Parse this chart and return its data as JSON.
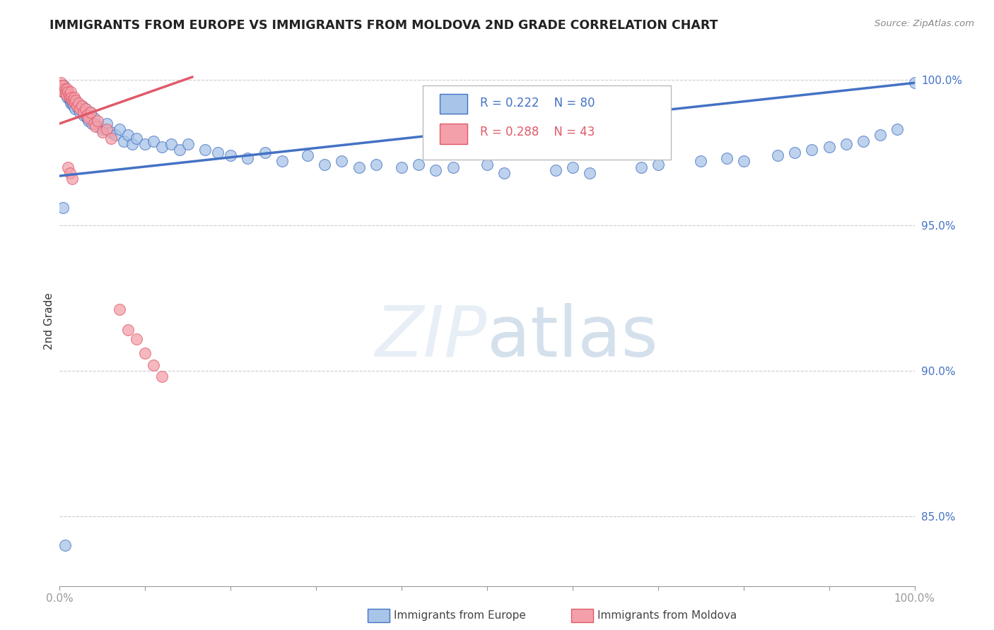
{
  "title": "IMMIGRANTS FROM EUROPE VS IMMIGRANTS FROM MOLDOVA 2ND GRADE CORRELATION CHART",
  "source": "Source: ZipAtlas.com",
  "ylabel": "2nd Grade",
  "xlim": [
    0.0,
    1.0
  ],
  "ylim": [
    0.826,
    1.008
  ],
  "yticks": [
    0.85,
    0.9,
    0.95,
    1.0
  ],
  "ytick_labels": [
    "85.0%",
    "90.0%",
    "95.0%",
    "100.0%"
  ],
  "legend_label_blue": "Immigrants from Europe",
  "legend_label_pink": "Immigrants from Moldova",
  "R_blue": 0.222,
  "N_blue": 80,
  "R_pink": 0.288,
  "N_pink": 43,
  "trendline_blue_color": "#4472c4",
  "trendline_pink_color": "#e05a6a",
  "scatter_blue_color": "#a8c4e8",
  "scatter_pink_color": "#f4a0aa",
  "background_color": "#ffffff",
  "grid_color": "#cccccc",
  "blue_trend_x": [
    0.0,
    1.0
  ],
  "blue_trend_y": [
    0.967,
    0.999
  ],
  "pink_trend_x": [
    0.0,
    0.155
  ],
  "pink_trend_y": [
    0.985,
    1.001
  ],
  "blue_x": [
    0.003,
    0.004,
    0.005,
    0.006,
    0.007,
    0.008,
    0.009,
    0.01,
    0.011,
    0.012,
    0.013,
    0.014,
    0.015,
    0.016,
    0.017,
    0.018,
    0.019,
    0.02,
    0.022,
    0.024,
    0.026,
    0.028,
    0.03,
    0.032,
    0.034,
    0.036,
    0.038,
    0.04,
    0.045,
    0.05,
    0.055,
    0.06,
    0.065,
    0.07,
    0.075,
    0.08,
    0.085,
    0.09,
    0.1,
    0.11,
    0.12,
    0.13,
    0.14,
    0.15,
    0.17,
    0.185,
    0.2,
    0.22,
    0.24,
    0.26,
    0.29,
    0.31,
    0.33,
    0.35,
    0.37,
    0.4,
    0.42,
    0.44,
    0.46,
    0.5,
    0.52,
    0.58,
    0.6,
    0.62,
    0.68,
    0.7,
    0.75,
    0.78,
    0.8,
    0.84,
    0.86,
    0.88,
    0.9,
    0.92,
    0.94,
    0.96,
    0.98,
    1.0,
    0.004,
    0.006
  ],
  "blue_y": [
    0.997,
    0.996,
    0.998,
    0.997,
    0.996,
    0.995,
    0.994,
    0.996,
    0.994,
    0.993,
    0.992,
    0.993,
    0.992,
    0.991,
    0.993,
    0.99,
    0.992,
    0.991,
    0.99,
    0.989,
    0.991,
    0.988,
    0.99,
    0.987,
    0.986,
    0.989,
    0.985,
    0.987,
    0.984,
    0.983,
    0.985,
    0.982,
    0.981,
    0.983,
    0.979,
    0.981,
    0.978,
    0.98,
    0.978,
    0.979,
    0.977,
    0.978,
    0.976,
    0.978,
    0.976,
    0.975,
    0.974,
    0.973,
    0.975,
    0.972,
    0.974,
    0.971,
    0.972,
    0.97,
    0.971,
    0.97,
    0.971,
    0.969,
    0.97,
    0.971,
    0.968,
    0.969,
    0.97,
    0.968,
    0.97,
    0.971,
    0.972,
    0.973,
    0.972,
    0.974,
    0.975,
    0.976,
    0.977,
    0.978,
    0.979,
    0.981,
    0.983,
    0.999,
    0.956,
    0.84
  ],
  "pink_x": [
    0.001,
    0.002,
    0.003,
    0.004,
    0.005,
    0.006,
    0.007,
    0.008,
    0.009,
    0.01,
    0.011,
    0.012,
    0.013,
    0.014,
    0.015,
    0.016,
    0.017,
    0.018,
    0.019,
    0.02,
    0.022,
    0.024,
    0.026,
    0.028,
    0.03,
    0.032,
    0.034,
    0.036,
    0.04,
    0.042,
    0.044,
    0.05,
    0.055,
    0.06,
    0.07,
    0.08,
    0.09,
    0.1,
    0.11,
    0.12,
    0.01,
    0.012,
    0.015
  ],
  "pink_y": [
    0.999,
    0.998,
    0.997,
    0.998,
    0.996,
    0.997,
    0.996,
    0.995,
    0.997,
    0.996,
    0.995,
    0.994,
    0.996,
    0.994,
    0.993,
    0.993,
    0.994,
    0.992,
    0.993,
    0.991,
    0.992,
    0.99,
    0.991,
    0.989,
    0.99,
    0.988,
    0.987,
    0.989,
    0.985,
    0.984,
    0.986,
    0.982,
    0.983,
    0.98,
    0.921,
    0.914,
    0.911,
    0.906,
    0.902,
    0.898,
    0.97,
    0.968,
    0.966
  ]
}
